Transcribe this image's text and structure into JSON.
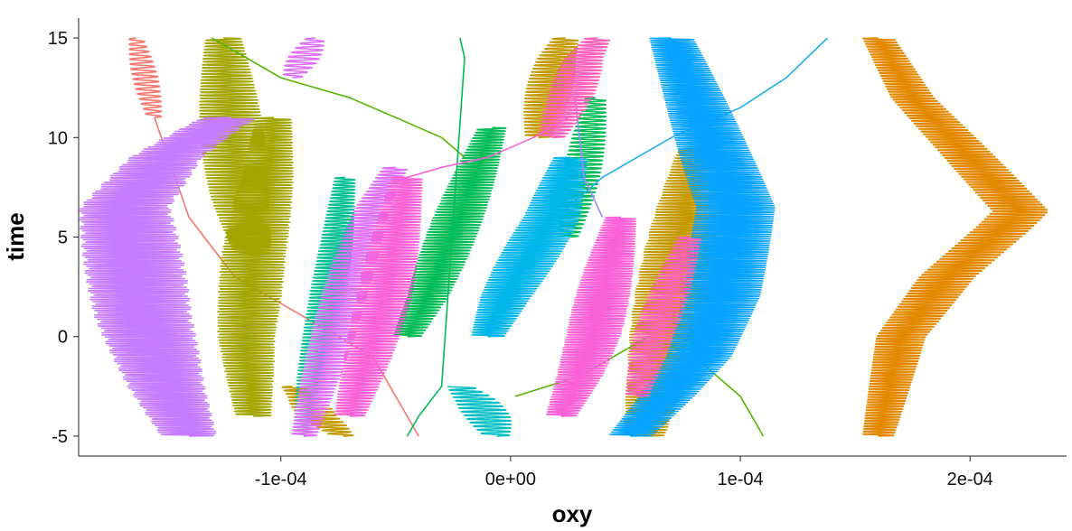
{
  "chart_data": {
    "type": "line",
    "title": "",
    "xlabel": "oxy",
    "ylabel": "time",
    "xlim": [
      -0.000188,
      0.000242
    ],
    "ylim": [
      -6,
      16
    ],
    "x_ticks": [
      {
        "value": -0.0001,
        "label": "-1e-04"
      },
      {
        "value": 0,
        "label": "0e+00"
      },
      {
        "value": 0.0001,
        "label": "1e-04"
      },
      {
        "value": 0.0002,
        "label": "2e-04"
      }
    ],
    "y_ticks": [
      {
        "value": -5,
        "label": "-5"
      },
      {
        "value": 0,
        "label": "0"
      },
      {
        "value": 5,
        "label": "5"
      },
      {
        "value": 10,
        "label": "10"
      },
      {
        "value": 15,
        "label": "15"
      }
    ],
    "grid": false,
    "legend": "none",
    "series": [
      {
        "color": "#F8766D",
        "oscillating": true,
        "amp": 5.5e-06,
        "freq": 4,
        "x": [
          -0.000163,
          -0.00016,
          -0.000158,
          -0.000155
        ],
        "y": [
          15,
          13.5,
          12.5,
          11
        ]
      },
      {
        "color": "#F8766D",
        "oscillating": false,
        "x": [
          -0.000155,
          -0.00014,
          -0.00012,
          -9e-05,
          -6e-05,
          -4e-05
        ],
        "y": [
          11,
          6,
          3,
          1,
          -1,
          -5
        ]
      },
      {
        "color": "#E38900",
        "oscillating": true,
        "amp": 1.4e-05,
        "freq": 7.5,
        "x": [
          0.00016,
          0.00017,
          0.00019,
          0.000215,
          0.000222,
          0.0002,
          0.000175,
          0.00016
        ],
        "y": [
          -5,
          0,
          3,
          5.5,
          6.3,
          9,
          12,
          15
        ]
      },
      {
        "color": "#A3A500",
        "oscillating": true,
        "amp": 1.4e-05,
        "freq": 7,
        "x": [
          -0.000112,
          -0.000115,
          -0.000112,
          -0.000106,
          -0.000103
        ],
        "y": [
          -4,
          0,
          4,
          8,
          11
        ]
      },
      {
        "color": "#A3A500",
        "oscillating": true,
        "amp": 1.4e-05,
        "freq": 6.5,
        "x": [
          -0.000125,
          -0.000122,
          -0.000118,
          -0.000112
        ],
        "y": [
          15,
          11,
          7,
          4
        ]
      },
      {
        "color": "#C49A00",
        "oscillating": true,
        "amp": 8.5e-06,
        "freq": 6,
        "x": [
          -9.5e-05,
          -9e-05,
          -8.4e-05,
          -7.8e-05,
          -7.3e-05
        ],
        "y": [
          -2.5,
          -3,
          -4,
          -4.5,
          -5
        ]
      },
      {
        "color": "#C49A00",
        "oscillating": true,
        "amp": 1e-05,
        "freq": 6,
        "x": [
          1.2e-05,
          1.6e-05,
          2e-05,
          2.4e-05
        ],
        "y": [
          10,
          12,
          14,
          15
        ]
      },
      {
        "color": "#C49A00",
        "oscillating": true,
        "amp": 1.6e-05,
        "freq": 7,
        "x": [
          5.8e-05,
          6.4e-05,
          7e-05,
          7.6e-05,
          8.2e-05
        ],
        "y": [
          -5,
          -2,
          2,
          6,
          9.5
        ]
      },
      {
        "color": "#53B400",
        "oscillating": false,
        "x": [
          -0.00013,
          -0.0001,
          -7e-05,
          -5e-05,
          -3e-05,
          -2e-05
        ],
        "y": [
          15,
          13,
          12,
          11,
          10,
          9
        ]
      },
      {
        "color": "#53B400",
        "oscillating": false,
        "x": [
          2e-06,
          3e-05,
          6e-05,
          8e-05,
          0.0001,
          0.00011
        ],
        "y": [
          -3,
          -2,
          0,
          -1,
          -3,
          -5
        ]
      },
      {
        "color": "#00BC56",
        "oscillating": true,
        "amp": 1.1e-05,
        "freq": 7,
        "x": [
          -4.5e-05,
          -3.6e-05,
          -2.6e-05,
          -1.6e-05,
          -8e-06
        ],
        "y": [
          0,
          2,
          5,
          8,
          10.5
        ]
      },
      {
        "color": "#00BC56",
        "oscillating": true,
        "amp": 8e-06,
        "freq": 5,
        "x": [
          2.5e-05,
          3e-05,
          3.4e-05,
          3.7e-05
        ],
        "y": [
          5,
          7.5,
          10,
          12
        ]
      },
      {
        "color": "#00BC56",
        "oscillating": false,
        "x": [
          -4.5e-05,
          -4e-05,
          -3e-05,
          -2e-05,
          -2.2e-05
        ],
        "y": [
          -5,
          -4,
          -2.5,
          14,
          15
        ]
      },
      {
        "color": "#00C094",
        "oscillating": true,
        "amp": 8e-06,
        "freq": 6,
        "x": [
          -9e-05,
          -8.6e-05,
          -8.1e-05,
          -7.6e-05,
          -7.2e-05
        ],
        "y": [
          -5,
          -2,
          1,
          4.5,
          8
        ]
      },
      {
        "color": "#00BFC4",
        "oscillating": true,
        "amp": 1e-05,
        "freq": 5.5,
        "x": [
          -2.2e-05,
          -1.5e-05,
          -1e-05,
          -6e-06
        ],
        "y": [
          -2.5,
          -3.2,
          -4,
          -5
        ]
      },
      {
        "color": "#20AFEC",
        "oscillating": false,
        "x": [
          2e-05,
          4e-05,
          7e-05,
          0.0001,
          0.00012,
          0.000138
        ],
        "y": [
          6,
          8,
          10,
          11.5,
          13,
          15
        ]
      },
      {
        "color": "#00B6EB",
        "oscillating": true,
        "amp": 1.3e-05,
        "freq": 8,
        "x": [
          -1e-05,
          -2e-06,
          8e-06,
          1.8e-05,
          2.6e-05
        ],
        "y": [
          0,
          2,
          4,
          6,
          9
        ]
      },
      {
        "color": "#06A4FF",
        "oscillating": true,
        "amp": 1.8e-05,
        "freq": 9,
        "x": [
          5.2e-05,
          6.8e-05,
          8.2e-05,
          9.2e-05,
          9.8e-05,
          8.8e-05,
          8e-05,
          7e-05
        ],
        "y": [
          -5,
          -3,
          -1,
          2,
          6.5,
          9.5,
          12,
          15
        ]
      },
      {
        "color": "#A58AFF",
        "oscillating": false,
        "x": [
          2.8e-05,
          3.2e-05,
          4e-05
        ],
        "y": [
          12,
          8,
          6
        ]
      },
      {
        "color": "#C77CFF",
        "oscillating": true,
        "amp": 2.2e-05,
        "freq": 9,
        "x": [
          -0.00014,
          -0.00015,
          -0.00016,
          -0.000168,
          -0.00015,
          -0.00013,
          -0.000122
        ],
        "y": [
          -5,
          -2.5,
          1,
          6.5,
          9,
          10.5,
          11
        ]
      },
      {
        "color": "#DF70F8",
        "oscillating": true,
        "amp": 1e-05,
        "freq": 6,
        "x": [
          -9e-05,
          -8e-05,
          -7e-05,
          -6e-05,
          -5e-05
        ],
        "y": [
          -5,
          -1,
          3,
          6.5,
          8.5
        ]
      },
      {
        "color": "#DF70F8",
        "oscillating": true,
        "amp": 7e-06,
        "freq": 4.5,
        "x": [
          -9.5e-05,
          -9e-05,
          -8.5e-05
        ],
        "y": [
          13,
          14,
          15
        ]
      },
      {
        "color": "#FB61D7",
        "oscillating": true,
        "amp": 1.2e-05,
        "freq": 7,
        "x": [
          -7e-05,
          -6.2e-05,
          -5.5e-05,
          -5e-05,
          -4.5e-05
        ],
        "y": [
          -4,
          -1,
          2,
          5,
          8
        ]
      },
      {
        "color": "#FB61D7",
        "oscillating": true,
        "amp": 1.2e-05,
        "freq": 8,
        "x": [
          2.2e-05,
          3e-05,
          3.6e-05,
          4.2e-05,
          4.8e-05
        ],
        "y": [
          -4,
          -2,
          0,
          3,
          6
        ]
      },
      {
        "color": "#FB61D7",
        "oscillating": false,
        "x": [
          -4.5e-05,
          -3e-05,
          -1e-05,
          1e-05,
          2.5e-05
        ],
        "y": [
          8,
          8.5,
          9,
          10,
          11
        ]
      },
      {
        "color": "#FF62BC",
        "oscillating": true,
        "amp": 1e-05,
        "freq": 6,
        "x": [
          1.8e-05,
          2.6e-05,
          3.2e-05,
          3.8e-05
        ],
        "y": [
          10,
          12,
          14,
          15
        ]
      },
      {
        "color": "#FF62BC",
        "oscillating": true,
        "amp": 9e-06,
        "freq": 6,
        "x": [
          5.5e-05,
          6.2e-05,
          7e-05,
          7.8e-05
        ],
        "y": [
          -3,
          0,
          2.5,
          5
        ]
      }
    ]
  }
}
